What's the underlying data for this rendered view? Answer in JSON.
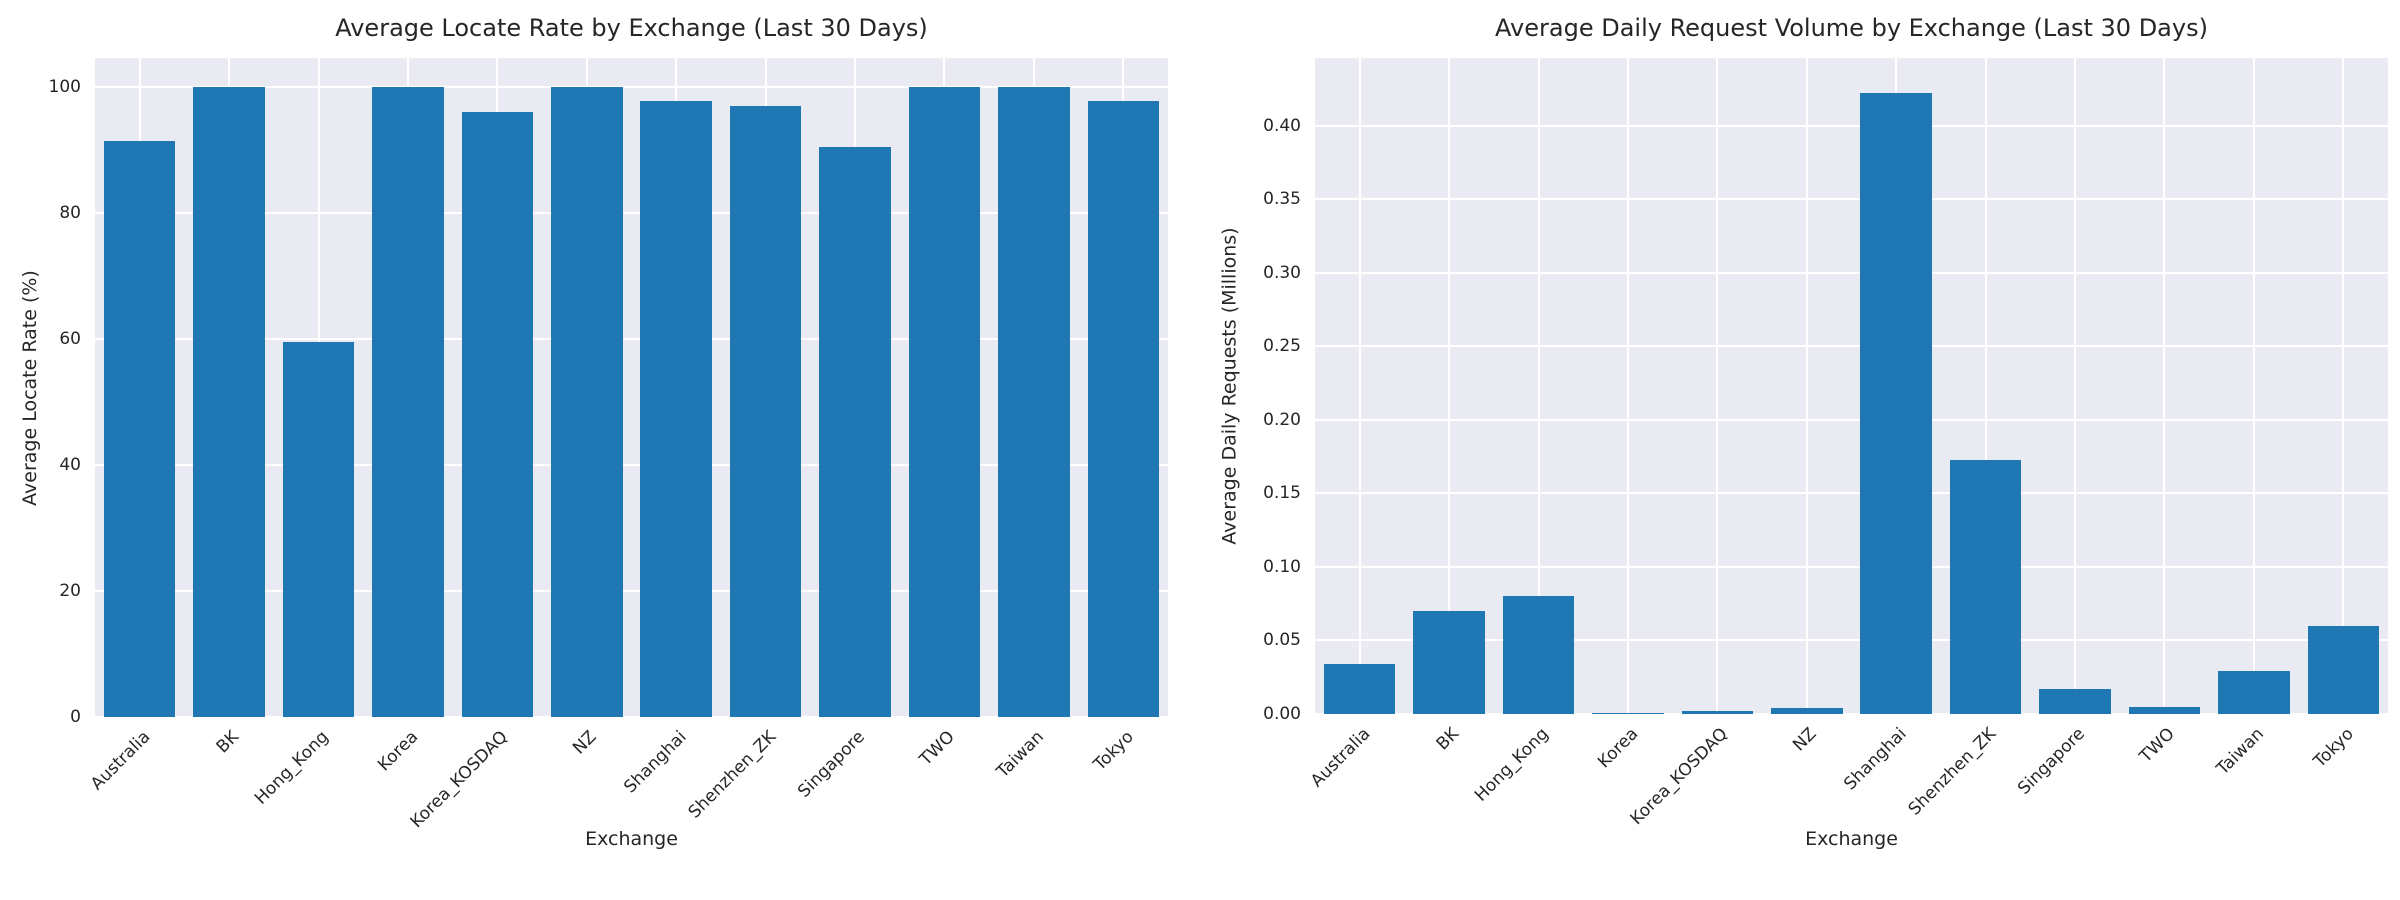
{
  "style": {
    "figure_background": "#ffffff",
    "plot_background": "#eaeaf2",
    "grid_color": "#ffffff",
    "bar_color": "#1f77b4",
    "text_color": "#262626"
  },
  "chart_data": [
    {
      "type": "bar",
      "title": "Average Locate Rate by Exchange (Last 30 Days)",
      "xlabel": "Exchange",
      "ylabel": "Average Locate Rate (%)",
      "legend": "none",
      "grid": true,
      "categories": [
        "Australia",
        "BK",
        "Hong_Kong",
        "Korea",
        "Korea_KOSDAQ",
        "NZ",
        "Shanghai",
        "Shenzhen_ZK",
        "Singapore",
        "TWO",
        "Taiwan",
        "Tokyo"
      ],
      "values": [
        91.5,
        100.0,
        59.6,
        100.0,
        96.0,
        100.0,
        97.7,
        97.0,
        90.4,
        100.0,
        100.0,
        97.8
      ],
      "ylim": [
        0,
        104.6
      ],
      "yticks": [
        {
          "value": 0,
          "label": "0"
        },
        {
          "value": 20,
          "label": "20"
        },
        {
          "value": 40,
          "label": "40"
        },
        {
          "value": 60,
          "label": "60"
        },
        {
          "value": 80,
          "label": "80"
        },
        {
          "value": 100,
          "label": "100"
        }
      ]
    },
    {
      "type": "bar",
      "title": "Average Daily Request Volume by Exchange (Last 30 Days)",
      "xlabel": "Exchange",
      "ylabel": "Average Daily Requests (Millions)",
      "legend": "none",
      "grid": true,
      "categories": [
        "Australia",
        "BK",
        "Hong_Kong",
        "Korea",
        "Korea_KOSDAQ",
        "NZ",
        "Shanghai",
        "Shenzhen_ZK",
        "Singapore",
        "TWO",
        "Taiwan",
        "Tokyo"
      ],
      "values": [
        0.034,
        0.07,
        0.08,
        0.001,
        0.002,
        0.004,
        0.422,
        0.173,
        0.017,
        0.005,
        0.029,
        0.06
      ],
      "ylim": [
        0,
        0.446
      ],
      "yticks": [
        {
          "value": 0.0,
          "label": "0.00"
        },
        {
          "value": 0.05,
          "label": "0.05"
        },
        {
          "value": 0.1,
          "label": "0.10"
        },
        {
          "value": 0.15,
          "label": "0.15"
        },
        {
          "value": 0.2,
          "label": "0.20"
        },
        {
          "value": 0.25,
          "label": "0.25"
        },
        {
          "value": 0.3,
          "label": "0.30"
        },
        {
          "value": 0.35,
          "label": "0.35"
        },
        {
          "value": 0.4,
          "label": "0.40"
        }
      ]
    }
  ]
}
